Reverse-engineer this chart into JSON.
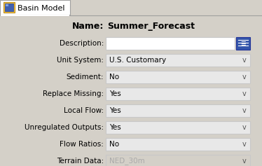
{
  "tab_text": "Basin Model",
  "panel_bg": "#d4d0c8",
  "title_label": "Name:",
  "title_value": "Summer_Forecast",
  "fields": [
    {
      "label": "Description:",
      "value": "",
      "enabled": true,
      "type": "text"
    },
    {
      "label": "Unit System:",
      "value": "U.S. Customary",
      "enabled": true,
      "type": "dropdown"
    },
    {
      "label": "Sediment:",
      "value": "No",
      "enabled": true,
      "type": "dropdown"
    },
    {
      "label": "Replace Missing:",
      "value": "Yes",
      "enabled": true,
      "type": "dropdown"
    },
    {
      "label": "Local Flow:",
      "value": "Yes",
      "enabled": true,
      "type": "dropdown"
    },
    {
      "label": "Unregulated Outputs:",
      "value": "Yes",
      "enabled": true,
      "type": "dropdown"
    },
    {
      "label": "Flow Ratios:",
      "value": "No",
      "enabled": true,
      "type": "dropdown"
    },
    {
      "label": "Terrain Data:",
      "value": "NED_30m",
      "enabled": false,
      "type": "dropdown"
    }
  ],
  "field_bg_enabled": "#e8e8e8",
  "field_bg_disabled": "#d4d0c8",
  "field_text_enabled": "#000000",
  "field_text_disabled": "#aaaaaa",
  "label_color": "#000000",
  "border_light": "#c8c8c8",
  "border_dark": "#888888",
  "dropdown_arrow": "v",
  "figw": 3.74,
  "figh": 2.37,
  "dpi": 100
}
